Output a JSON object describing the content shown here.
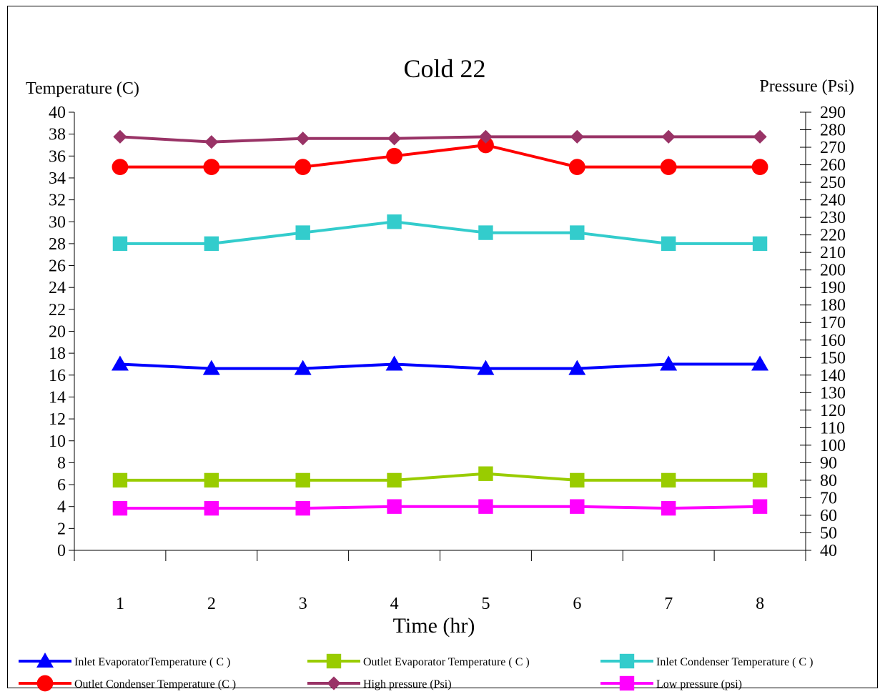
{
  "chart_data": {
    "type": "line",
    "title": "Cold 22",
    "xlabel": "Time (hr)",
    "ylabel_left": "Temperature (C)",
    "ylabel_right": "Pressure (Psi)",
    "categories": [
      "1",
      "2",
      "3",
      "4",
      "5",
      "6",
      "7",
      "8"
    ],
    "ylim_left": [
      0,
      40
    ],
    "ylim_right": [
      40,
      290
    ],
    "yticks_left": [
      0,
      2,
      4,
      6,
      8,
      10,
      12,
      14,
      16,
      18,
      20,
      22,
      24,
      26,
      28,
      30,
      32,
      34,
      36,
      38,
      40
    ],
    "yticks_right": [
      40,
      50,
      60,
      70,
      80,
      90,
      100,
      110,
      120,
      130,
      140,
      150,
      160,
      170,
      180,
      190,
      200,
      210,
      220,
      230,
      240,
      250,
      260,
      270,
      280,
      290
    ],
    "grid": false,
    "legend_position": "bottom",
    "series": [
      {
        "name": "Inlet EvaporatorTemperature ( C )",
        "axis": "left",
        "color": "#0000ff",
        "marker": "triangle",
        "values": [
          17,
          16.6,
          16.6,
          17,
          16.6,
          16.6,
          17,
          17
        ]
      },
      {
        "name": "Outlet Evaporator Temperature ( C )",
        "axis": "left",
        "color": "#99cc00",
        "marker": "square",
        "values": [
          6.4,
          6.4,
          6.4,
          6.4,
          7,
          6.4,
          6.4,
          6.4
        ]
      },
      {
        "name": "Inlet Condenser Temperature ( C )",
        "axis": "left",
        "color": "#33cccc",
        "marker": "square",
        "values": [
          28,
          28,
          29,
          30,
          29,
          29,
          28,
          28
        ]
      },
      {
        "name": "Outlet Condenser Temperature (C )",
        "axis": "left",
        "color": "#ff0000",
        "marker": "circle",
        "values": [
          35,
          35,
          35,
          36,
          37,
          35,
          35,
          35
        ]
      },
      {
        "name": "High pressure (Psi)",
        "axis": "right",
        "color": "#993366",
        "marker": "diamond",
        "values": [
          276,
          273,
          275,
          275,
          276,
          276,
          276,
          276
        ]
      },
      {
        "name": "Low pressure (psi)",
        "axis": "right",
        "color": "#ff00ff",
        "marker": "square",
        "values": [
          64,
          64,
          64,
          65,
          65,
          65,
          64,
          65
        ]
      }
    ]
  }
}
